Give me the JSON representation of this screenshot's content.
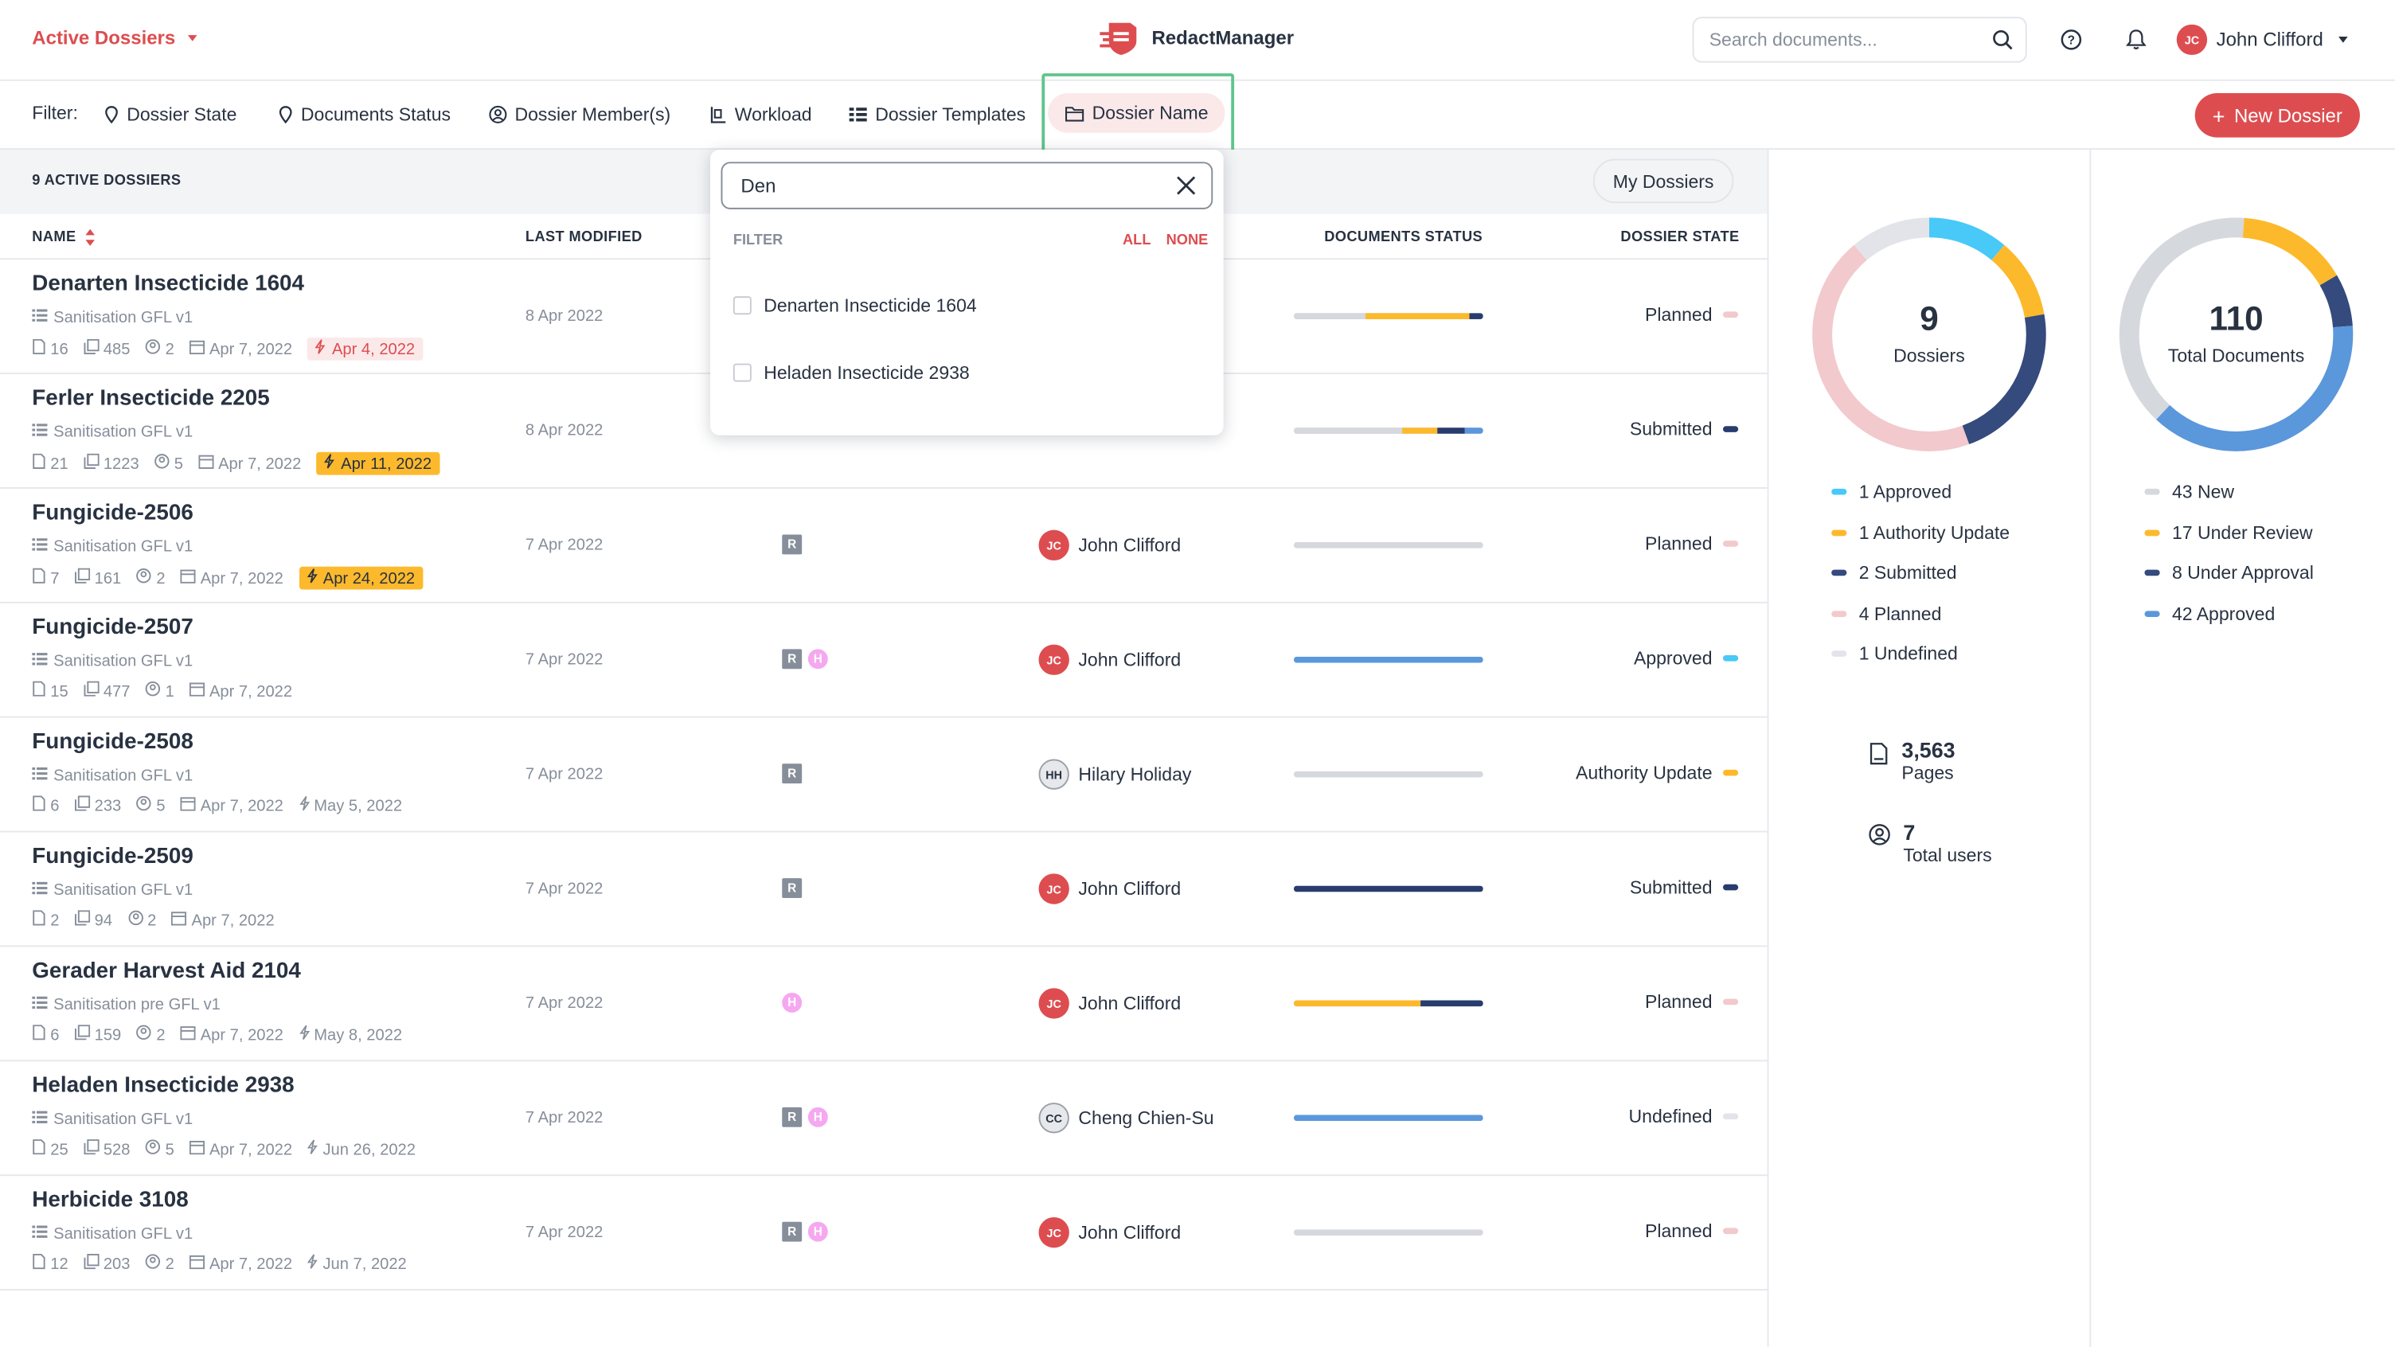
{
  "app": {
    "name": "RedactManager"
  },
  "header": {
    "breadcrumb": "Active Dossiers",
    "search_placeholder": "Search documents...",
    "user": {
      "initials": "JC",
      "name": "John Clifford"
    }
  },
  "filters": {
    "label": "Filter:",
    "items": [
      "Dossier State",
      "Documents Status",
      "Dossier Member(s)",
      "Workload",
      "Dossier Templates",
      "Dossier Name"
    ],
    "new_button": "New Dossier"
  },
  "list": {
    "count_label": "9 ACTIVE DOSSIERS",
    "my_dossiers": "My Dossiers",
    "columns": {
      "name": "NAME",
      "last_modified": "LAST MODIFIED",
      "documents_status": "DOCUMENTS STATUS",
      "dossier_state": "DOSSIER STATE"
    }
  },
  "colors": {
    "accent": "#dd4d50",
    "approved": "#48c9f7",
    "authority": "#fdb92c",
    "submitted": "#283c6e",
    "planned": "#f2c9cc",
    "undefined": "#e2e4e9",
    "new": "#d5d8dd",
    "under_review": "#fdb92c",
    "under_approval": "#354a7d",
    "docs_approved": "#5b97db"
  },
  "dossiers": [
    {
      "name": "Denarten Insecticide 1604",
      "template": "Sanitisation GFL v1",
      "docs": "16",
      "pages": "485",
      "members": "2",
      "created": "Apr 7, 2022",
      "due": "Apr 4, 2022",
      "due_style": "red",
      "modified": "8 Apr 2022",
      "badges": [],
      "owner": null,
      "bar": [
        [
          "#d5d8dd",
          38
        ],
        [
          "#fdb92c",
          55
        ],
        [
          "#283c6e",
          7
        ]
      ],
      "state": "Planned",
      "state_color": "#f2c9cc"
    },
    {
      "name": "Ferler Insecticide 2205",
      "template": "Sanitisation GFL v1",
      "docs": "21",
      "pages": "1223",
      "members": "5",
      "created": "Apr 7, 2022",
      "due": "Apr 11, 2022",
      "due_style": "yellow",
      "modified": "8 Apr 2022",
      "badges": [],
      "owner": null,
      "bar": [
        [
          "#d5d8dd",
          57
        ],
        [
          "#fdb92c",
          19
        ],
        [
          "#283c6e",
          14
        ],
        [
          "#5b97db",
          10
        ]
      ],
      "state": "Submitted",
      "state_color": "#283c6e"
    },
    {
      "name": "Fungicide-2506",
      "template": "Sanitisation GFL v1",
      "docs": "7",
      "pages": "161",
      "members": "2",
      "created": "Apr 7, 2022",
      "due": "Apr 24, 2022",
      "due_style": "yellow",
      "modified": "7 Apr 2022",
      "badges": [
        "R"
      ],
      "owner": {
        "initials": "JC",
        "name": "John Clifford",
        "grey": false
      },
      "bar": [
        [
          "#d5d8dd",
          100
        ]
      ],
      "state": "Planned",
      "state_color": "#f2c9cc"
    },
    {
      "name": "Fungicide-2507",
      "template": "Sanitisation GFL v1",
      "docs": "15",
      "pages": "477",
      "members": "1",
      "created": "Apr 7, 2022",
      "due": "",
      "due_style": "",
      "modified": "7 Apr 2022",
      "badges": [
        "R",
        "H"
      ],
      "owner": {
        "initials": "JC",
        "name": "John Clifford",
        "grey": false
      },
      "bar": [
        [
          "#5b97db",
          100
        ]
      ],
      "state": "Approved",
      "state_color": "#48c9f7"
    },
    {
      "name": "Fungicide-2508",
      "template": "Sanitisation GFL v1",
      "docs": "6",
      "pages": "233",
      "members": "5",
      "created": "Apr 7, 2022",
      "due": "May 5, 2022",
      "due_style": "plain",
      "modified": "7 Apr 2022",
      "badges": [
        "R"
      ],
      "owner": {
        "initials": "HH",
        "name": "Hilary Holiday",
        "grey": true
      },
      "bar": [
        [
          "#d5d8dd",
          100
        ]
      ],
      "state": "Authority Update",
      "state_color": "#fdb92c"
    },
    {
      "name": "Fungicide-2509",
      "template": "Sanitisation GFL v1",
      "docs": "2",
      "pages": "94",
      "members": "2",
      "created": "Apr 7, 2022",
      "due": "",
      "due_style": "",
      "modified": "7 Apr 2022",
      "badges": [
        "R"
      ],
      "owner": {
        "initials": "JC",
        "name": "John Clifford",
        "grey": false
      },
      "bar": [
        [
          "#283c6e",
          100
        ]
      ],
      "state": "Submitted",
      "state_color": "#283c6e"
    },
    {
      "name": "Gerader Harvest Aid 2104",
      "template": "Sanitisation pre GFL v1",
      "docs": "6",
      "pages": "159",
      "members": "2",
      "created": "Apr 7, 2022",
      "due": "May 8, 2022",
      "due_style": "plain",
      "modified": "7 Apr 2022",
      "badges": [
        "H"
      ],
      "owner": {
        "initials": "JC",
        "name": "John Clifford",
        "grey": false
      },
      "bar": [
        [
          "#fdb92c",
          67
        ],
        [
          "#283c6e",
          33
        ]
      ],
      "state": "Planned",
      "state_color": "#f2c9cc"
    },
    {
      "name": "Heladen Insecticide 2938",
      "template": "Sanitisation GFL v1",
      "docs": "25",
      "pages": "528",
      "members": "5",
      "created": "Apr 7, 2022",
      "due": "Jun 26, 2022",
      "due_style": "plain",
      "modified": "7 Apr 2022",
      "badges": [
        "R",
        "H"
      ],
      "owner": {
        "initials": "CC",
        "name": "Cheng Chien-Su",
        "grey": true
      },
      "bar": [
        [
          "#5b97db",
          100
        ]
      ],
      "state": "Undefined",
      "state_color": "#e2e4e9"
    },
    {
      "name": "Herbicide 3108",
      "template": "Sanitisation GFL v1",
      "docs": "12",
      "pages": "203",
      "members": "2",
      "created": "Apr 7, 2022",
      "due": "Jun 7, 2022",
      "due_style": "plain",
      "modified": "7 Apr 2022",
      "badges": [
        "R",
        "H"
      ],
      "owner": {
        "initials": "JC",
        "name": "John Clifford",
        "grey": false
      },
      "bar": [
        [
          "#d5d8dd",
          100
        ]
      ],
      "state": "Planned",
      "state_color": "#f2c9cc"
    }
  ],
  "dropdown": {
    "search_value": "Den",
    "filter_label": "FILTER",
    "all": "ALL",
    "none": "NONE",
    "options": [
      "Denarten Insecticide 1604",
      "Heladen Insecticide 2938"
    ]
  },
  "stats": {
    "dossiers": {
      "total": "9",
      "label": "Dossiers",
      "legend": [
        {
          "text": "1 Approved",
          "value": 1,
          "color": "#48c9f7"
        },
        {
          "text": "1 Authority Update",
          "value": 1,
          "color": "#fdb92c"
        },
        {
          "text": "2 Submitted",
          "value": 2,
          "color": "#354a7d"
        },
        {
          "text": "4 Planned",
          "value": 4,
          "color": "#f2c9cc"
        },
        {
          "text": "1 Undefined",
          "value": 1,
          "color": "#e2e4e9"
        }
      ]
    },
    "documents": {
      "total": "110",
      "label": "Total Documents",
      "legend": [
        {
          "text": "43 New",
          "value": 43,
          "color": "#d5d8dd"
        },
        {
          "text": "17 Under Review",
          "value": 17,
          "color": "#fdb92c"
        },
        {
          "text": "8 Under Approval",
          "value": 8,
          "color": "#354a7d"
        },
        {
          "text": "42 Approved",
          "value": 42,
          "color": "#5b97db"
        }
      ]
    },
    "pages": {
      "value": "3,563",
      "label": "Pages"
    },
    "users": {
      "value": "7",
      "label": "Total users"
    }
  }
}
